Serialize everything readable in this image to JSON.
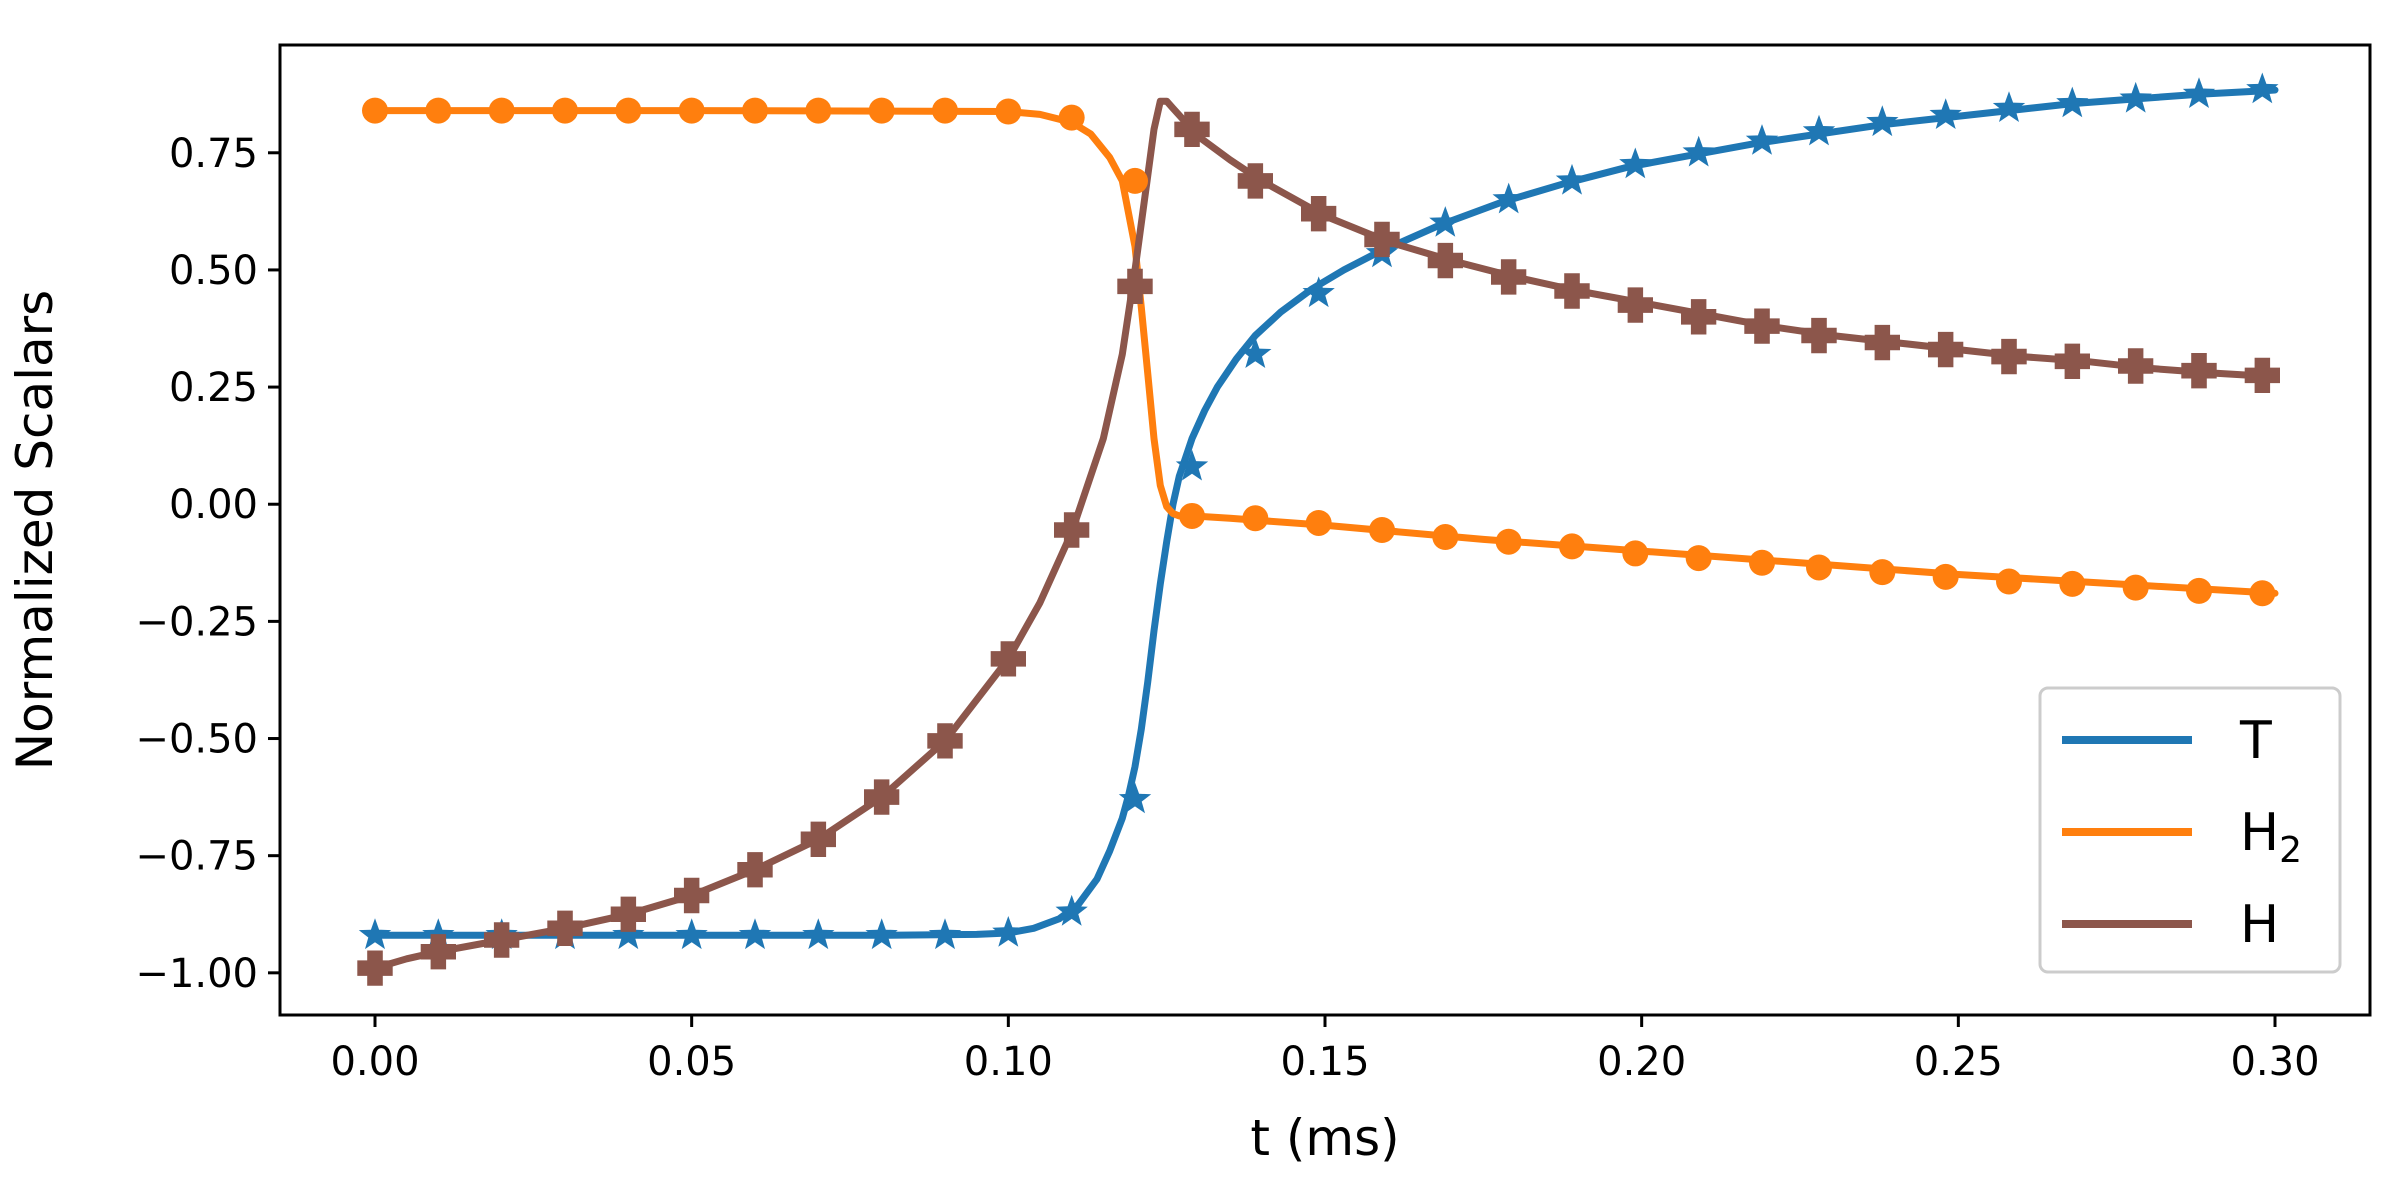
{
  "chart_data": {
    "type": "line",
    "xlabel": "t (ms)",
    "ylabel": "Normalized Scalars",
    "xlim": [
      -0.015,
      0.315
    ],
    "ylim": [
      -1.09,
      0.98
    ],
    "x_ticks": [
      0.0,
      0.05,
      0.1,
      0.15,
      0.2,
      0.25,
      0.3
    ],
    "x_tick_labels": [
      "0.00",
      "0.05",
      "0.10",
      "0.15",
      "0.20",
      "0.25",
      "0.30"
    ],
    "y_ticks": [
      0.75,
      0.5,
      0.25,
      0.0,
      -0.25,
      -0.5,
      -0.75,
      -1.0
    ],
    "y_tick_labels": [
      "0.75",
      "0.50",
      "0.25",
      "0.00",
      "−0.25",
      "−0.50",
      "−0.75",
      "−1.00"
    ],
    "legend_position": "bottom-right",
    "series": [
      {
        "name": "T",
        "name_main": "T",
        "name_sub": "",
        "color": "#1f77b4",
        "marker": "star",
        "x": [
          0,
          0.02,
          0.05,
          0.08,
          0.095,
          0.1,
          0.104,
          0.108,
          0.111,
          0.114,
          0.116,
          0.118,
          0.119,
          0.12,
          0.121,
          0.122,
          0.123,
          0.124,
          0.125,
          0.126,
          0.127,
          0.128,
          0.129,
          0.131,
          0.133,
          0.136,
          0.139,
          0.143,
          0.148,
          0.153,
          0.158,
          0.163,
          0.168,
          0.178,
          0.188,
          0.198,
          0.208,
          0.218,
          0.228,
          0.238,
          0.248,
          0.258,
          0.268,
          0.278,
          0.288,
          0.298,
          0.3
        ],
        "y": [
          -0.92,
          -0.92,
          -0.92,
          -0.92,
          -0.918,
          -0.915,
          -0.905,
          -0.885,
          -0.855,
          -0.8,
          -0.74,
          -0.67,
          -0.62,
          -0.56,
          -0.48,
          -0.38,
          -0.27,
          -0.17,
          -0.08,
          0.0,
          0.06,
          0.1,
          0.14,
          0.2,
          0.25,
          0.31,
          0.36,
          0.41,
          0.46,
          0.5,
          0.535,
          0.565,
          0.595,
          0.645,
          0.685,
          0.72,
          0.745,
          0.77,
          0.79,
          0.81,
          0.825,
          0.84,
          0.855,
          0.865,
          0.875,
          0.882,
          0.884
        ],
        "marker_x": [
          0,
          0.01,
          0.02,
          0.03,
          0.04,
          0.05,
          0.06,
          0.07,
          0.08,
          0.09,
          0.1,
          0.11,
          0.12,
          0.129,
          0.139,
          0.149,
          0.159,
          0.169,
          0.179,
          0.189,
          0.199,
          0.209,
          0.219,
          0.228,
          0.238,
          0.248,
          0.258,
          0.268,
          0.278,
          0.288,
          0.298
        ],
        "marker_y": [
          -0.92,
          -0.92,
          -0.92,
          -0.92,
          -0.92,
          -0.92,
          -0.92,
          -0.92,
          -0.92,
          -0.92,
          -0.915,
          -0.87,
          -0.63,
          0.08,
          0.32,
          0.45,
          0.535,
          0.6,
          0.65,
          0.69,
          0.725,
          0.75,
          0.775,
          0.795,
          0.815,
          0.83,
          0.845,
          0.855,
          0.865,
          0.875,
          0.885
        ]
      },
      {
        "name": "H2",
        "name_main": "H",
        "name_sub": "2",
        "color": "#ff7f0e",
        "marker": "circle",
        "x": [
          0,
          0.05,
          0.1,
          0.105,
          0.11,
          0.113,
          0.116,
          0.118,
          0.12,
          0.121,
          0.122,
          0.123,
          0.124,
          0.125,
          0.126,
          0.127,
          0.128,
          0.129,
          0.135,
          0.15,
          0.175,
          0.2,
          0.225,
          0.25,
          0.275,
          0.3
        ],
        "y": [
          0.84,
          0.84,
          0.838,
          0.832,
          0.815,
          0.79,
          0.74,
          0.69,
          0.55,
          0.42,
          0.28,
          0.14,
          0.04,
          -0.005,
          -0.02,
          -0.025,
          -0.025,
          -0.025,
          -0.03,
          -0.045,
          -0.075,
          -0.1,
          -0.125,
          -0.15,
          -0.17,
          -0.19
        ],
        "marker_x": [
          0,
          0.01,
          0.02,
          0.03,
          0.04,
          0.05,
          0.06,
          0.07,
          0.08,
          0.09,
          0.1,
          0.11,
          0.12,
          0.129,
          0.139,
          0.149,
          0.159,
          0.169,
          0.179,
          0.189,
          0.199,
          0.209,
          0.219,
          0.228,
          0.238,
          0.248,
          0.258,
          0.268,
          0.278,
          0.288,
          0.298
        ],
        "marker_y": [
          0.84,
          0.84,
          0.84,
          0.84,
          0.84,
          0.84,
          0.84,
          0.84,
          0.84,
          0.84,
          0.838,
          0.825,
          0.69,
          -0.025,
          -0.03,
          -0.04,
          -0.055,
          -0.07,
          -0.08,
          -0.09,
          -0.105,
          -0.115,
          -0.125,
          -0.135,
          -0.145,
          -0.155,
          -0.165,
          -0.17,
          -0.178,
          -0.185,
          -0.19
        ]
      },
      {
        "name": "H",
        "name_main": "H",
        "name_sub": "",
        "color": "#8c564b",
        "marker": "x",
        "x": [
          0,
          0.005,
          0.01,
          0.02,
          0.03,
          0.04,
          0.05,
          0.06,
          0.07,
          0.08,
          0.09,
          0.1,
          0.105,
          0.11,
          0.115,
          0.118,
          0.12,
          0.122,
          0.123,
          0.124,
          0.125,
          0.126,
          0.128,
          0.13,
          0.135,
          0.14,
          0.15,
          0.16,
          0.17,
          0.18,
          0.19,
          0.2,
          0.21,
          0.22,
          0.23,
          0.24,
          0.25,
          0.26,
          0.27,
          0.28,
          0.29,
          0.3
        ],
        "y": [
          -0.99,
          -0.97,
          -0.955,
          -0.93,
          -0.905,
          -0.875,
          -0.835,
          -0.78,
          -0.715,
          -0.625,
          -0.505,
          -0.33,
          -0.21,
          -0.06,
          0.14,
          0.32,
          0.5,
          0.7,
          0.8,
          0.86,
          0.86,
          0.845,
          0.815,
          0.785,
          0.735,
          0.69,
          0.615,
          0.56,
          0.52,
          0.485,
          0.455,
          0.43,
          0.405,
          0.38,
          0.36,
          0.345,
          0.33,
          0.315,
          0.305,
          0.29,
          0.28,
          0.272
        ],
        "marker_x": [
          0,
          0.01,
          0.02,
          0.03,
          0.04,
          0.05,
          0.06,
          0.07,
          0.08,
          0.09,
          0.1,
          0.11,
          0.12,
          0.129,
          0.139,
          0.149,
          0.159,
          0.169,
          0.179,
          0.189,
          0.199,
          0.209,
          0.219,
          0.228,
          0.238,
          0.248,
          0.258,
          0.268,
          0.278,
          0.288,
          0.298
        ],
        "marker_y": [
          -0.99,
          -0.955,
          -0.93,
          -0.905,
          -0.875,
          -0.835,
          -0.78,
          -0.715,
          -0.625,
          -0.505,
          -0.33,
          -0.055,
          0.465,
          0.8,
          0.69,
          0.62,
          0.565,
          0.52,
          0.485,
          0.455,
          0.425,
          0.4,
          0.38,
          0.36,
          0.345,
          0.33,
          0.315,
          0.305,
          0.295,
          0.285,
          0.275
        ]
      }
    ]
  }
}
